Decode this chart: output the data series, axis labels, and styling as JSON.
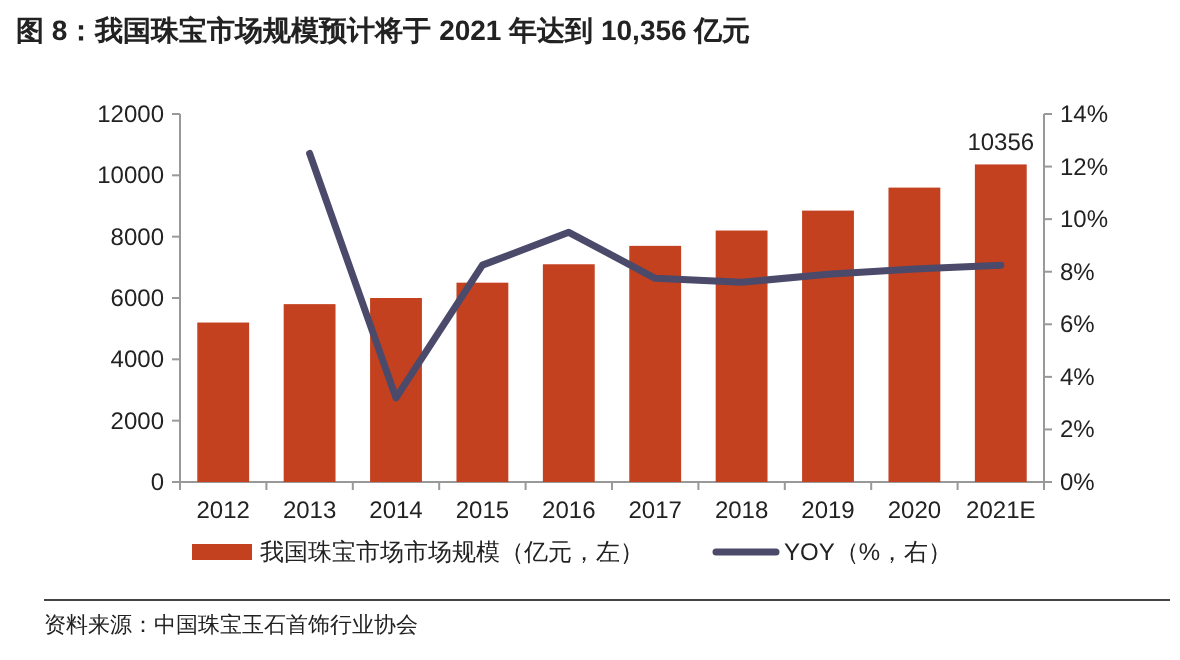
{
  "chart_data": {
    "type": "bar",
    "title": "图 8：我国珠宝市场规模预计将于 2021 年达到 10,356 亿元",
    "categories": [
      "2012",
      "2013",
      "2014",
      "2015",
      "2016",
      "2017",
      "2018",
      "2019",
      "2020",
      "2021E"
    ],
    "series": [
      {
        "name": "我国珠宝市场市场规模（亿元，左）",
        "color": "#c4411f",
        "values": [
          5200,
          5800,
          6000,
          6500,
          7100,
          7700,
          8200,
          8850,
          9600,
          10356
        ],
        "value_labels": [
          null,
          null,
          null,
          null,
          null,
          null,
          null,
          null,
          null,
          "10356"
        ]
      },
      {
        "name": "YOY（%，右）",
        "type": "line",
        "axis": "y2",
        "color": "#4b4a6b",
        "values": [
          null,
          12.5,
          3.2,
          8.25,
          9.5,
          7.75,
          7.6,
          7.9,
          8.1,
          8.25
        ]
      }
    ],
    "ylim": [
      0,
      12000
    ],
    "yticks": [
      0,
      2000,
      4000,
      6000,
      8000,
      10000,
      12000
    ],
    "y2lim": [
      0,
      14
    ],
    "y2ticks": [
      {
        "value": 0,
        "label": "0%"
      },
      {
        "value": 2,
        "label": "2%"
      },
      {
        "value": 4,
        "label": "4%"
      },
      {
        "value": 6,
        "label": "6%"
      },
      {
        "value": 8,
        "label": "8%"
      },
      {
        "value": 10,
        "label": "10%"
      },
      {
        "value": 12,
        "label": "12%"
      },
      {
        "value": 14,
        "label": "14%"
      }
    ],
    "grid": false,
    "legend": "bottom",
    "marker": "none",
    "annotations": [
      "资料来源：中国珠宝玉石首饰行业协会"
    ]
  }
}
